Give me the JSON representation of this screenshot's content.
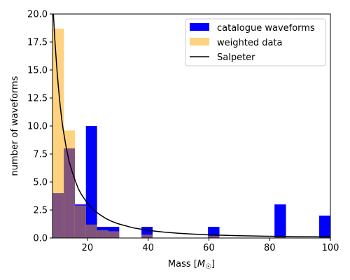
{
  "chart_data": {
    "type": "bar",
    "title": "",
    "xlabel": "Mass [M☉]",
    "xlabel_parts": {
      "main": "Mass [",
      "italic": "M",
      "sub": "☉",
      "close": "]"
    },
    "ylabel": "number of waveforms",
    "xlim": [
      8.5,
      100
    ],
    "ylim": [
      0,
      20
    ],
    "x_ticks": [
      20,
      40,
      60,
      80,
      100
    ],
    "y_ticks": [
      0.0,
      2.5,
      5.0,
      7.5,
      10.0,
      12.5,
      15.0,
      17.5,
      20.0
    ],
    "x_tick_labels": [
      "20",
      "40",
      "60",
      "80",
      "100"
    ],
    "y_tick_labels": [
      "0.0",
      "2.5",
      "5.0",
      "7.5",
      "10.0",
      "12.5",
      "15.0",
      "17.5",
      "20.0"
    ],
    "legend_position": "top-right",
    "legend": [
      "catalogue waveforms",
      "weighted data",
      "Salpeter"
    ],
    "bin_edges": [
      8.5,
      12.2,
      15.8,
      19.5,
      23.1,
      26.8,
      30.4,
      34.1,
      37.8,
      41.4,
      45.1,
      48.7,
      52.4,
      56.0,
      59.7,
      63.4,
      67.0,
      70.7,
      74.3,
      78.0,
      81.6,
      85.3,
      89.0,
      92.6,
      96.3,
      100.0
    ],
    "series": [
      {
        "name": "catalogue waveforms",
        "kind": "histogram",
        "color": "#0000ff",
        "values": [
          4,
          8,
          3,
          10,
          1,
          1,
          0,
          0,
          1,
          0,
          0,
          0,
          0,
          0,
          1,
          0,
          0,
          0,
          0,
          0,
          3,
          0,
          0,
          0,
          2
        ]
      },
      {
        "name": "weighted data",
        "kind": "histogram",
        "color": "#ffa500",
        "opacity": 0.5,
        "values": [
          18.7,
          9.6,
          2.9,
          1.2,
          0.7,
          0.6,
          0,
          0,
          0.3,
          0,
          0,
          0,
          0,
          0,
          0.2,
          0,
          0,
          0,
          0,
          0,
          0.1,
          0,
          0,
          0,
          0.1
        ]
      },
      {
        "name": "Salpeter",
        "kind": "line",
        "color": "#000000",
        "x": [
          8.8,
          9.2,
          9.6,
          10,
          10.5,
          11,
          11.5,
          12,
          13,
          14,
          15,
          16,
          17,
          18,
          20,
          22,
          24,
          26,
          28,
          30,
          35,
          40,
          45,
          50,
          55,
          60,
          65,
          70,
          75,
          80,
          85,
          90,
          95,
          100
        ],
        "y": [
          20.0,
          18.0,
          16.4,
          14.9,
          13.3,
          11.9,
          10.7,
          9.7,
          8.1,
          6.8,
          5.9,
          5.1,
          4.4,
          3.9,
          3.1,
          2.5,
          2.1,
          1.75,
          1.49,
          1.28,
          0.91,
          0.68,
          0.53,
          0.42,
          0.34,
          0.28,
          0.24,
          0.205,
          0.176,
          0.153,
          0.134,
          0.119,
          0.106,
          0.095
        ]
      }
    ]
  }
}
